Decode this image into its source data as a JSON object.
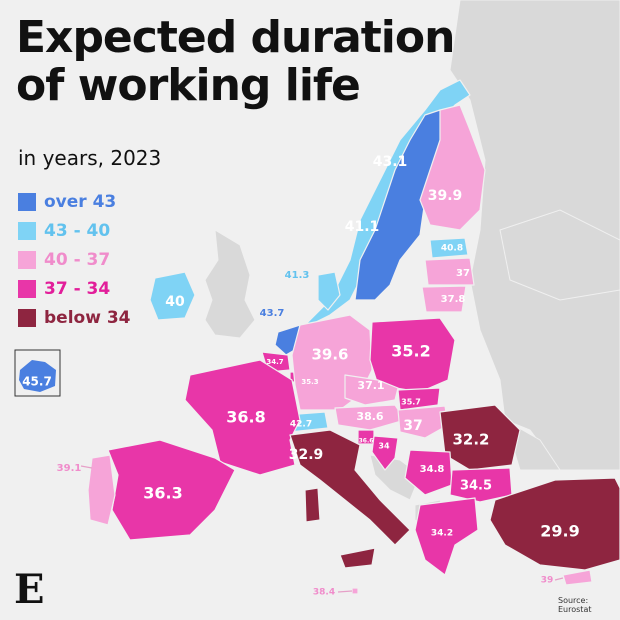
{
  "title_line1": "Expected duration",
  "title_line2": "of working life",
  "subtitle": "in years, 2023",
  "legend": [
    {
      "label": "over 43",
      "color": "#4a7fe0",
      "text_color": "#4a7fe0"
    },
    {
      "label": "43 - 40",
      "color": "#7fd3f5",
      "text_color": "#62c2ee"
    },
    {
      "label": "40 - 37",
      "color": "#f6a4d8",
      "text_color": "#f08ccb"
    },
    {
      "label": "37 - 34",
      "color": "#e836a8",
      "text_color": "#e21e9a"
    },
    {
      "label": "below 34",
      "color": "#8e2540",
      "text_color": "#8e2540"
    }
  ],
  "colors": {
    "background": "#f0f0f0",
    "non_eu": "#d9d9d9",
    "over_43": "#4a7fe0",
    "43_40": "#7fd3f5",
    "40_37": "#f6a4d8",
    "37_34": "#e836a8",
    "below_34": "#8e2540"
  },
  "countries": [
    {
      "name": "Sweden",
      "value": "43.1",
      "class": "over_43"
    },
    {
      "name": "Finland",
      "value": "39.9",
      "class": "40_37"
    },
    {
      "name": "Norway",
      "value": "41.1",
      "class": "43_40"
    },
    {
      "name": "Estonia",
      "value": "40.8",
      "class": "43_40"
    },
    {
      "name": "Latvia",
      "value": "37",
      "class": "40_37"
    },
    {
      "name": "Lithuania",
      "value": "37.8",
      "class": "40_37"
    },
    {
      "name": "Denmark",
      "value": "41.3",
      "class": "43_40"
    },
    {
      "name": "Ireland",
      "value": "40",
      "class": "43_40"
    },
    {
      "name": "Netherlands",
      "value": "43.7",
      "class": "over_43"
    },
    {
      "name": "Belgium",
      "value": "34.7",
      "class": "37_34"
    },
    {
      "name": "Luxembourg",
      "value": "35.3",
      "class": "37_34"
    },
    {
      "name": "Germany",
      "value": "39.6",
      "class": "40_37"
    },
    {
      "name": "Poland",
      "value": "35.2",
      "class": "37_34"
    },
    {
      "name": "Czechia",
      "value": "37.1",
      "class": "40_37"
    },
    {
      "name": "Slovakia",
      "value": "35.7",
      "class": "37_34"
    },
    {
      "name": "Austria",
      "value": "38.6",
      "class": "40_37"
    },
    {
      "name": "Hungary",
      "value": "37",
      "class": "40_37"
    },
    {
      "name": "Switzerland",
      "value": "42.7",
      "class": "43_40"
    },
    {
      "name": "Slovenia",
      "value": "36.6",
      "class": "37_34"
    },
    {
      "name": "Croatia",
      "value": "34",
      "class": "37_34"
    },
    {
      "name": "France",
      "value": "36.8",
      "class": "37_34"
    },
    {
      "name": "Italy",
      "value": "32.9",
      "class": "below_34"
    },
    {
      "name": "Romania",
      "value": "32.2",
      "class": "below_34"
    },
    {
      "name": "Serbia",
      "value": "34.8",
      "class": "37_34"
    },
    {
      "name": "Bulgaria",
      "value": "34.5",
      "class": "37_34"
    },
    {
      "name": "Greece",
      "value": "34.2",
      "class": "37_34"
    },
    {
      "name": "Turkey",
      "value": "29.9",
      "class": "below_34"
    },
    {
      "name": "Spain",
      "value": "36.3",
      "class": "37_34"
    },
    {
      "name": "Portugal",
      "value": "39.1",
      "class": "40_37"
    },
    {
      "name": "Iceland",
      "value": "45.7",
      "class": "over_43"
    },
    {
      "name": "Malta",
      "value": "38.4",
      "class": "40_37"
    },
    {
      "name": "Cyprus",
      "value": "39",
      "class": "40_37"
    }
  ],
  "logo": "E",
  "source": "Source: Eurostat"
}
